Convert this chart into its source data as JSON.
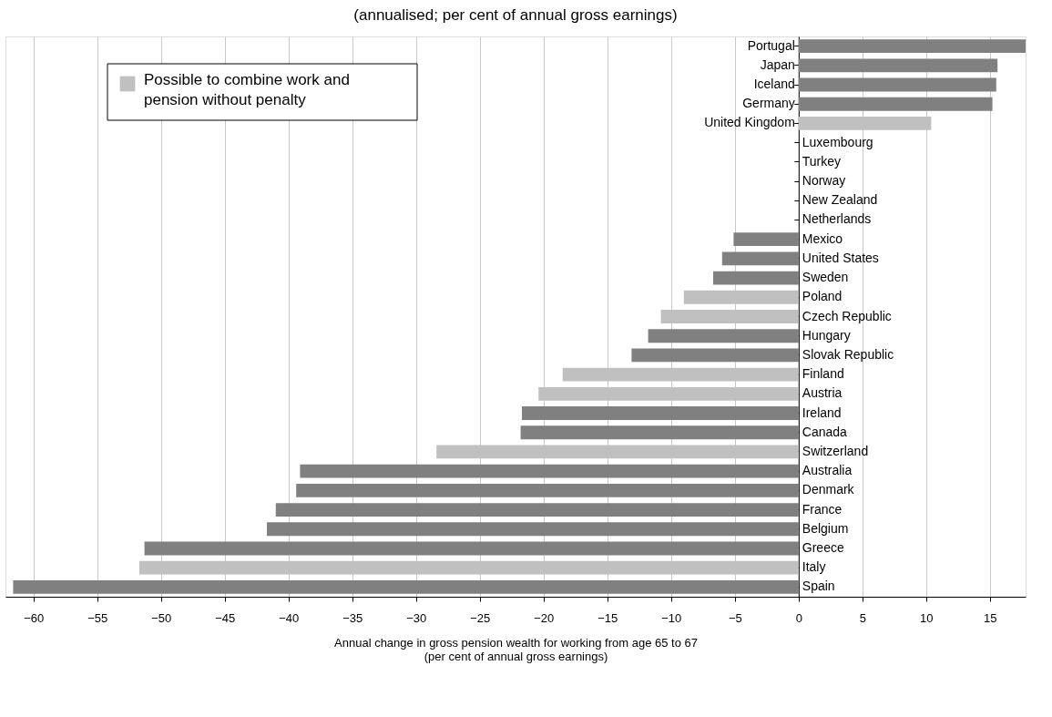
{
  "chart_data": {
    "type": "bar",
    "orientation": "horizontal",
    "title": "(annualised; per cent of annual gross earnings)",
    "xlabel": "Annual change in gross pension wealth for working from age 65 to 67\n(per cent of annual gross earnings)",
    "categories": [
      "Portugal",
      "Japan",
      "Iceland",
      "Germany",
      "United Kingdom",
      "Luxembourg",
      "Turkey",
      "Norway",
      "New Zealand",
      "Netherlands",
      "Mexico",
      "United States",
      "Sweden",
      "Poland",
      "Czech Republic",
      "Hungary",
      "Slovak Republic",
      "Finland",
      "Austria",
      "Ireland",
      "Canada",
      "Switzerland",
      "Australia",
      "Denmark",
      "France",
      "Belgium",
      "Greece",
      "Italy",
      "Spain"
    ],
    "series": [
      {
        "color": "#808080",
        "values": [
          17.8,
          15.6,
          15.5,
          15.2,
          null,
          0,
          0,
          0,
          0,
          0,
          -5.1,
          -6.0,
          -6.7,
          null,
          null,
          -11.8,
          -13.1,
          null,
          null,
          -21.7,
          -21.8,
          null,
          -39.1,
          -39.4,
          -41.0,
          -41.7,
          -51.3,
          null,
          -61.6
        ]
      },
      {
        "name": "Possible to combine work and pension without penalty",
        "color": "#c0c0c0",
        "values": [
          null,
          null,
          null,
          null,
          10.4,
          null,
          null,
          null,
          null,
          null,
          null,
          null,
          null,
          -9.0,
          -10.8,
          null,
          null,
          -18.5,
          -20.4,
          null,
          null,
          -28.4,
          null,
          null,
          null,
          null,
          null,
          -51.7,
          null
        ]
      }
    ],
    "xlim": [
      -62.2,
      17.8
    ],
    "xticks": [
      -60,
      -55,
      -50,
      -45,
      -40,
      -35,
      -30,
      -25,
      -20,
      -15,
      -10,
      -5,
      0,
      5,
      10,
      15
    ],
    "grid": "x",
    "legend": "top left"
  }
}
